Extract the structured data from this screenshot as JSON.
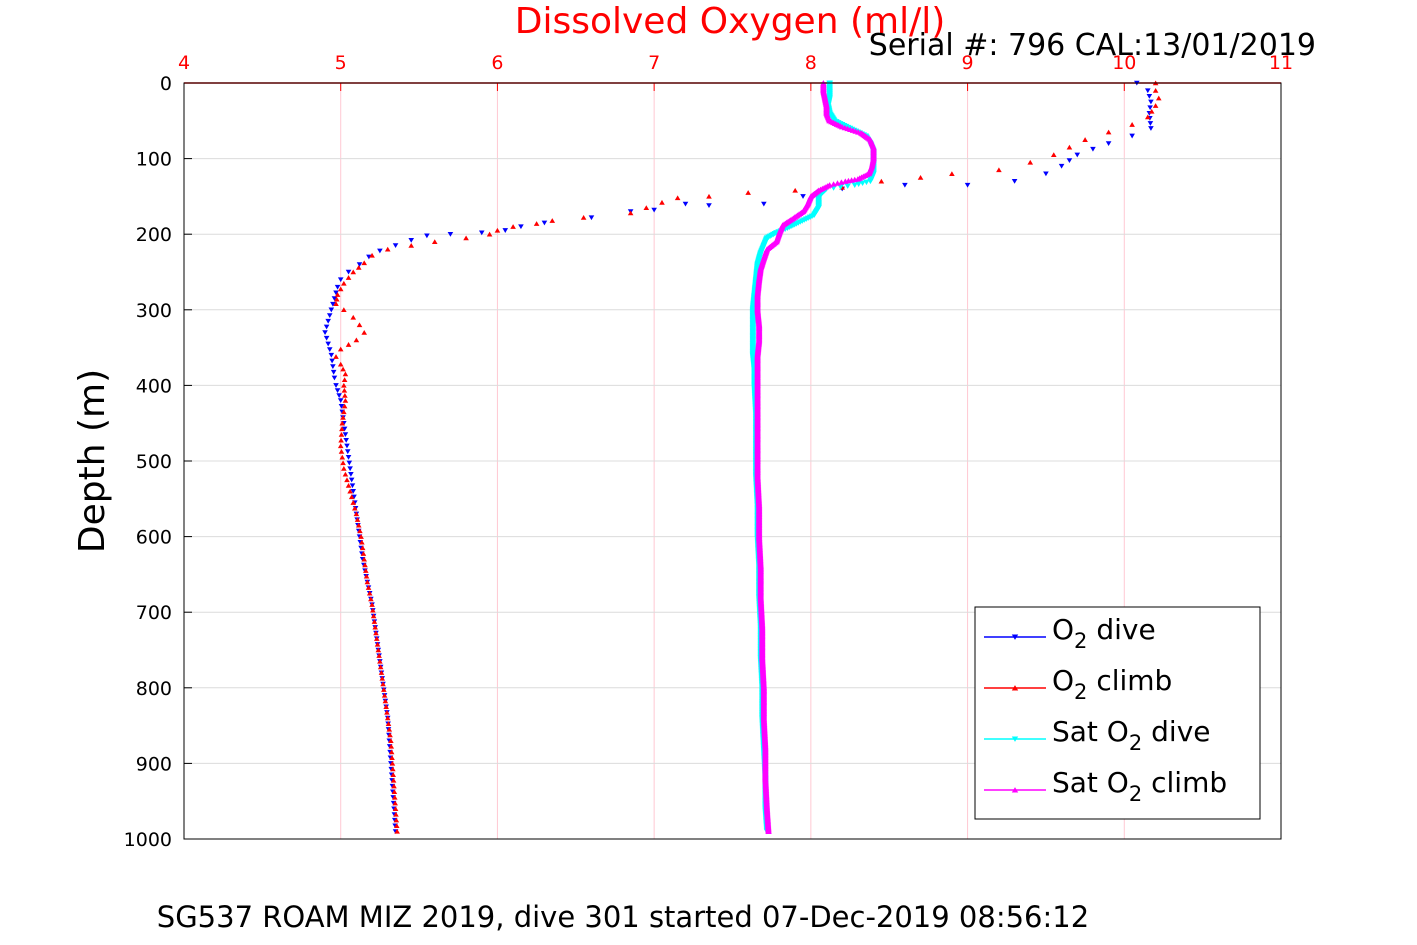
{
  "chart_data": {
    "type": "scatter",
    "title": "Dissolved Oxygen (ml/l)",
    "serial_label": "Serial #: 796  CAL:13/01/2019",
    "ylabel": "Depth (m)",
    "footer": "SG537 ROAM MIZ 2019, dive 301 started 07-Dec-2019 08:56:12",
    "xlim": [
      4,
      11
    ],
    "ylim": [
      0,
      1000
    ],
    "y_reversed": true,
    "x_axis_position": "top",
    "x_ticks": [
      "4",
      "5",
      "6",
      "7",
      "8",
      "9",
      "10",
      "11"
    ],
    "y_ticks": [
      "0",
      "100",
      "200",
      "300",
      "400",
      "500",
      "600",
      "700",
      "800",
      "900",
      "1000"
    ],
    "grid": true,
    "legend_position": "bottom-right",
    "colors": {
      "title": "#ff0000",
      "x_axis": "#ff0000",
      "grid": "#ffc8d2",
      "o2_dive": "#0000ff",
      "o2_climb": "#ff0000",
      "sat_dive": "#00ffff",
      "sat_climb": "#ff00ff"
    },
    "series": [
      {
        "name": "O_2 dive",
        "legend_label": {
          "pre": "O",
          "sub": "2",
          "post": " dive"
        },
        "color": "#0000ff",
        "marker": "triangle-down",
        "points": [
          [
            10.08,
            0
          ],
          [
            10.15,
            10
          ],
          [
            10.17,
            25
          ],
          [
            10.16,
            40
          ],
          [
            10.17,
            60
          ],
          [
            10.05,
            70
          ],
          [
            9.9,
            80
          ],
          [
            9.7,
            95
          ],
          [
            9.6,
            110
          ],
          [
            9.5,
            120
          ],
          [
            9.3,
            130
          ],
          [
            9.0,
            135
          ],
          [
            8.6,
            135
          ],
          [
            8.2,
            140
          ],
          [
            7.95,
            150
          ],
          [
            7.7,
            160
          ],
          [
            7.35,
            162
          ],
          [
            7.2,
            160
          ],
          [
            7.0,
            168
          ],
          [
            6.85,
            170
          ],
          [
            6.6,
            178
          ],
          [
            6.3,
            185
          ],
          [
            6.15,
            190
          ],
          [
            6.05,
            195
          ],
          [
            5.9,
            198
          ],
          [
            5.7,
            200
          ],
          [
            5.55,
            202
          ],
          [
            5.45,
            208
          ],
          [
            5.35,
            215
          ],
          [
            5.25,
            222
          ],
          [
            5.18,
            230
          ],
          [
            5.12,
            240
          ],
          [
            5.05,
            250
          ],
          [
            5.0,
            260
          ],
          [
            4.98,
            270
          ],
          [
            4.96,
            285
          ],
          [
            4.94,
            300
          ],
          [
            4.92,
            315
          ],
          [
            4.9,
            330
          ],
          [
            4.92,
            345
          ],
          [
            4.94,
            360
          ],
          [
            4.95,
            375
          ],
          [
            4.96,
            390
          ],
          [
            4.97,
            400
          ],
          [
            5.0,
            420
          ],
          [
            5.02,
            450
          ],
          [
            5.04,
            480
          ],
          [
            5.06,
            510
          ],
          [
            5.08,
            540
          ],
          [
            5.1,
            570
          ],
          [
            5.12,
            600
          ],
          [
            5.14,
            630
          ],
          [
            5.17,
            660
          ],
          [
            5.2,
            690
          ],
          [
            5.22,
            720
          ],
          [
            5.24,
            750
          ],
          [
            5.26,
            780
          ],
          [
            5.28,
            810
          ],
          [
            5.3,
            840
          ],
          [
            5.31,
            870
          ],
          [
            5.32,
            900
          ],
          [
            5.33,
            930
          ],
          [
            5.34,
            960
          ],
          [
            5.35,
            990
          ]
        ]
      },
      {
        "name": "O_2 climb",
        "legend_label": {
          "pre": "O",
          "sub": "2",
          "post": " climb"
        },
        "color": "#ff0000",
        "marker": "triangle-up",
        "points": [
          [
            10.2,
            0
          ],
          [
            10.2,
            10
          ],
          [
            10.22,
            20
          ],
          [
            10.2,
            30
          ],
          [
            10.15,
            45
          ],
          [
            10.05,
            55
          ],
          [
            9.9,
            65
          ],
          [
            9.75,
            75
          ],
          [
            9.65,
            85
          ],
          [
            9.55,
            95
          ],
          [
            9.4,
            105
          ],
          [
            9.2,
            115
          ],
          [
            8.9,
            120
          ],
          [
            8.7,
            125
          ],
          [
            8.45,
            130
          ],
          [
            8.2,
            138
          ],
          [
            7.9,
            142
          ],
          [
            7.6,
            145
          ],
          [
            7.35,
            150
          ],
          [
            7.15,
            152
          ],
          [
            7.05,
            158
          ],
          [
            6.95,
            165
          ],
          [
            6.85,
            172
          ],
          [
            6.55,
            178
          ],
          [
            6.35,
            182
          ],
          [
            6.25,
            186
          ],
          [
            6.1,
            190
          ],
          [
            6.0,
            195
          ],
          [
            5.95,
            200
          ],
          [
            5.8,
            205
          ],
          [
            5.6,
            210
          ],
          [
            5.45,
            215
          ],
          [
            5.3,
            220
          ],
          [
            5.2,
            228
          ],
          [
            5.15,
            238
          ],
          [
            5.08,
            250
          ],
          [
            5.02,
            265
          ],
          [
            4.98,
            280
          ],
          [
            4.97,
            292
          ],
          [
            5.02,
            300
          ],
          [
            5.08,
            310
          ],
          [
            5.12,
            320
          ],
          [
            5.15,
            330
          ],
          [
            5.1,
            340
          ],
          [
            5.0,
            352
          ],
          [
            4.97,
            362
          ],
          [
            5.0,
            372
          ],
          [
            5.03,
            385
          ],
          [
            5.02,
            400
          ],
          [
            5.03,
            420
          ],
          [
            5.01,
            450
          ],
          [
            5.0,
            480
          ],
          [
            5.02,
            510
          ],
          [
            5.06,
            540
          ],
          [
            5.1,
            570
          ],
          [
            5.13,
            600
          ],
          [
            5.15,
            630
          ],
          [
            5.17,
            660
          ],
          [
            5.2,
            690
          ],
          [
            5.22,
            720
          ],
          [
            5.24,
            750
          ],
          [
            5.26,
            780
          ],
          [
            5.28,
            810
          ],
          [
            5.3,
            840
          ],
          [
            5.32,
            870
          ],
          [
            5.33,
            900
          ],
          [
            5.34,
            930
          ],
          [
            5.35,
            960
          ],
          [
            5.36,
            990
          ]
        ]
      },
      {
        "name": "Sat O_2 dive",
        "legend_label": {
          "pre": "Sat O",
          "sub": "2",
          "post": " dive"
        },
        "color": "#00ffff",
        "marker": "triangle-down",
        "points": [
          [
            8.12,
            0
          ],
          [
            8.12,
            10
          ],
          [
            8.12,
            20
          ],
          [
            8.11,
            30
          ],
          [
            8.12,
            40
          ],
          [
            8.15,
            50
          ],
          [
            8.25,
            60
          ],
          [
            8.35,
            70
          ],
          [
            8.38,
            80
          ],
          [
            8.4,
            90
          ],
          [
            8.4,
            100
          ],
          [
            8.4,
            110
          ],
          [
            8.4,
            120
          ],
          [
            8.38,
            130
          ],
          [
            8.28,
            135
          ],
          [
            8.1,
            140
          ],
          [
            8.05,
            150
          ],
          [
            8.05,
            165
          ],
          [
            8.02,
            175
          ],
          [
            7.92,
            185
          ],
          [
            7.85,
            192
          ],
          [
            7.78,
            198
          ],
          [
            7.72,
            205
          ],
          [
            7.7,
            215
          ],
          [
            7.68,
            225
          ],
          [
            7.66,
            240
          ],
          [
            7.65,
            260
          ],
          [
            7.64,
            280
          ],
          [
            7.63,
            300
          ],
          [
            7.63,
            320
          ],
          [
            7.63,
            340
          ],
          [
            7.63,
            360
          ],
          [
            7.64,
            380
          ],
          [
            7.64,
            400
          ],
          [
            7.65,
            440
          ],
          [
            7.65,
            480
          ],
          [
            7.65,
            520
          ],
          [
            7.66,
            560
          ],
          [
            7.66,
            600
          ],
          [
            7.67,
            640
          ],
          [
            7.67,
            680
          ],
          [
            7.68,
            720
          ],
          [
            7.68,
            760
          ],
          [
            7.69,
            800
          ],
          [
            7.69,
            840
          ],
          [
            7.7,
            880
          ],
          [
            7.71,
            920
          ],
          [
            7.71,
            960
          ],
          [
            7.72,
            990
          ]
        ]
      },
      {
        "name": "Sat O_2 climb",
        "legend_label": {
          "pre": "Sat O",
          "sub": "2",
          "post": " climb"
        },
        "color": "#ff00ff",
        "marker": "triangle-up",
        "points": [
          [
            8.08,
            0
          ],
          [
            8.08,
            10
          ],
          [
            8.09,
            20
          ],
          [
            8.1,
            30
          ],
          [
            8.1,
            40
          ],
          [
            8.12,
            50
          ],
          [
            8.2,
            58
          ],
          [
            8.32,
            66
          ],
          [
            8.38,
            75
          ],
          [
            8.4,
            85
          ],
          [
            8.4,
            100
          ],
          [
            8.39,
            110
          ],
          [
            8.37,
            120
          ],
          [
            8.3,
            127
          ],
          [
            8.22,
            130
          ],
          [
            8.12,
            135
          ],
          [
            8.05,
            142
          ],
          [
            8.0,
            150
          ],
          [
            7.98,
            160
          ],
          [
            7.95,
            170
          ],
          [
            7.88,
            180
          ],
          [
            7.82,
            188
          ],
          [
            7.8,
            198
          ],
          [
            7.78,
            210
          ],
          [
            7.72,
            220
          ],
          [
            7.7,
            232
          ],
          [
            7.68,
            245
          ],
          [
            7.67,
            260
          ],
          [
            7.66,
            280
          ],
          [
            7.66,
            300
          ],
          [
            7.67,
            320
          ],
          [
            7.67,
            340
          ],
          [
            7.66,
            360
          ],
          [
            7.66,
            380
          ],
          [
            7.66,
            400
          ],
          [
            7.66,
            440
          ],
          [
            7.66,
            480
          ],
          [
            7.66,
            520
          ],
          [
            7.67,
            560
          ],
          [
            7.67,
            600
          ],
          [
            7.68,
            640
          ],
          [
            7.68,
            680
          ],
          [
            7.69,
            720
          ],
          [
            7.69,
            760
          ],
          [
            7.7,
            800
          ],
          [
            7.7,
            840
          ],
          [
            7.71,
            880
          ],
          [
            7.71,
            920
          ],
          [
            7.72,
            960
          ],
          [
            7.73,
            990
          ]
        ]
      }
    ]
  }
}
